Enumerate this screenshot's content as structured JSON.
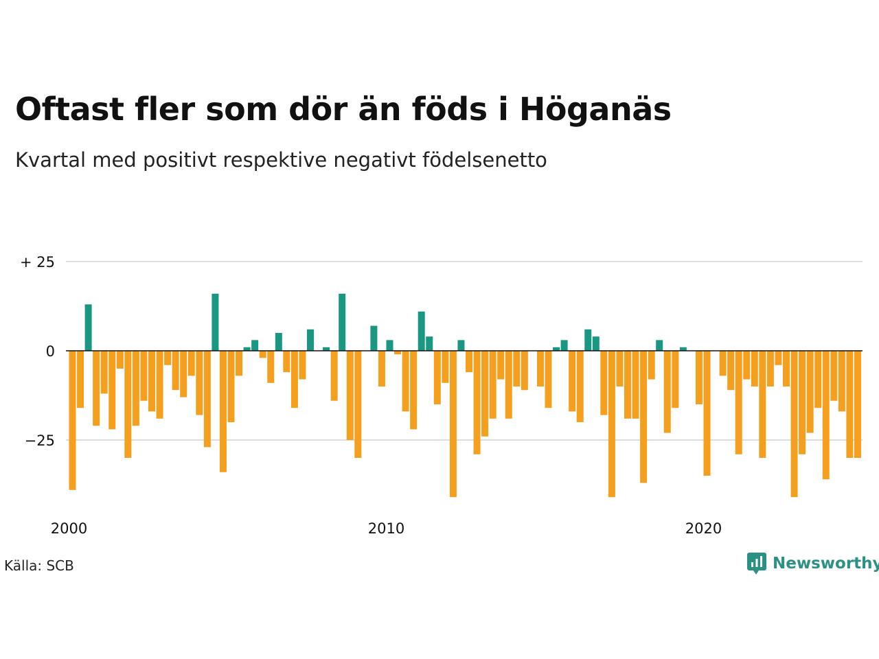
{
  "title": "Oftast fler som dör än föds i Höganäs",
  "subtitle": "Kvartal med positivt respektive negativt födelsenetto",
  "source": "Källa: SCB",
  "brand": "Newsworthy",
  "colors": {
    "positive": "#1a9783",
    "negative": "#f59f1e",
    "grid": "#dddddd",
    "zero_line": "#111111",
    "brand": "#2a9184"
  },
  "chart_data": {
    "type": "bar",
    "x_start": "2000-Q1",
    "x_tick_labels": [
      "2000",
      "2010",
      "2020"
    ],
    "y_tick_labels": [
      "+ 25",
      "0",
      "−25"
    ],
    "y_ticks": [
      25,
      0,
      -25
    ],
    "ylim": [
      -48,
      25
    ],
    "grid": true,
    "values": [
      -39,
      -16,
      13,
      -21,
      -12,
      -22,
      -5,
      -30,
      -21,
      -14,
      -17,
      -19,
      -4,
      -11,
      -13,
      -7,
      -18,
      -27,
      16,
      -34,
      -20,
      -7,
      1,
      3,
      -2,
      -9,
      5,
      -6,
      -16,
      -8,
      6,
      0,
      1,
      -14,
      16,
      -25,
      -30,
      0,
      7,
      -10,
      3,
      -1,
      -17,
      -22,
      11,
      4,
      -15,
      -9,
      -41,
      3,
      -6,
      -29,
      -24,
      -19,
      -8,
      -19,
      -10,
      -11,
      0,
      -10,
      -16,
      1,
      3,
      -17,
      -20,
      6,
      4,
      -18,
      -41,
      -10,
      -19,
      -19,
      -37,
      -8,
      3,
      -23,
      -16,
      1,
      0,
      -15,
      -35,
      0,
      -7,
      -11,
      -29,
      -8,
      -10,
      -30,
      -10,
      -4,
      -10,
      -41,
      -29,
      -23,
      -16,
      -36,
      -14,
      -17,
      -30,
      -30
    ]
  }
}
